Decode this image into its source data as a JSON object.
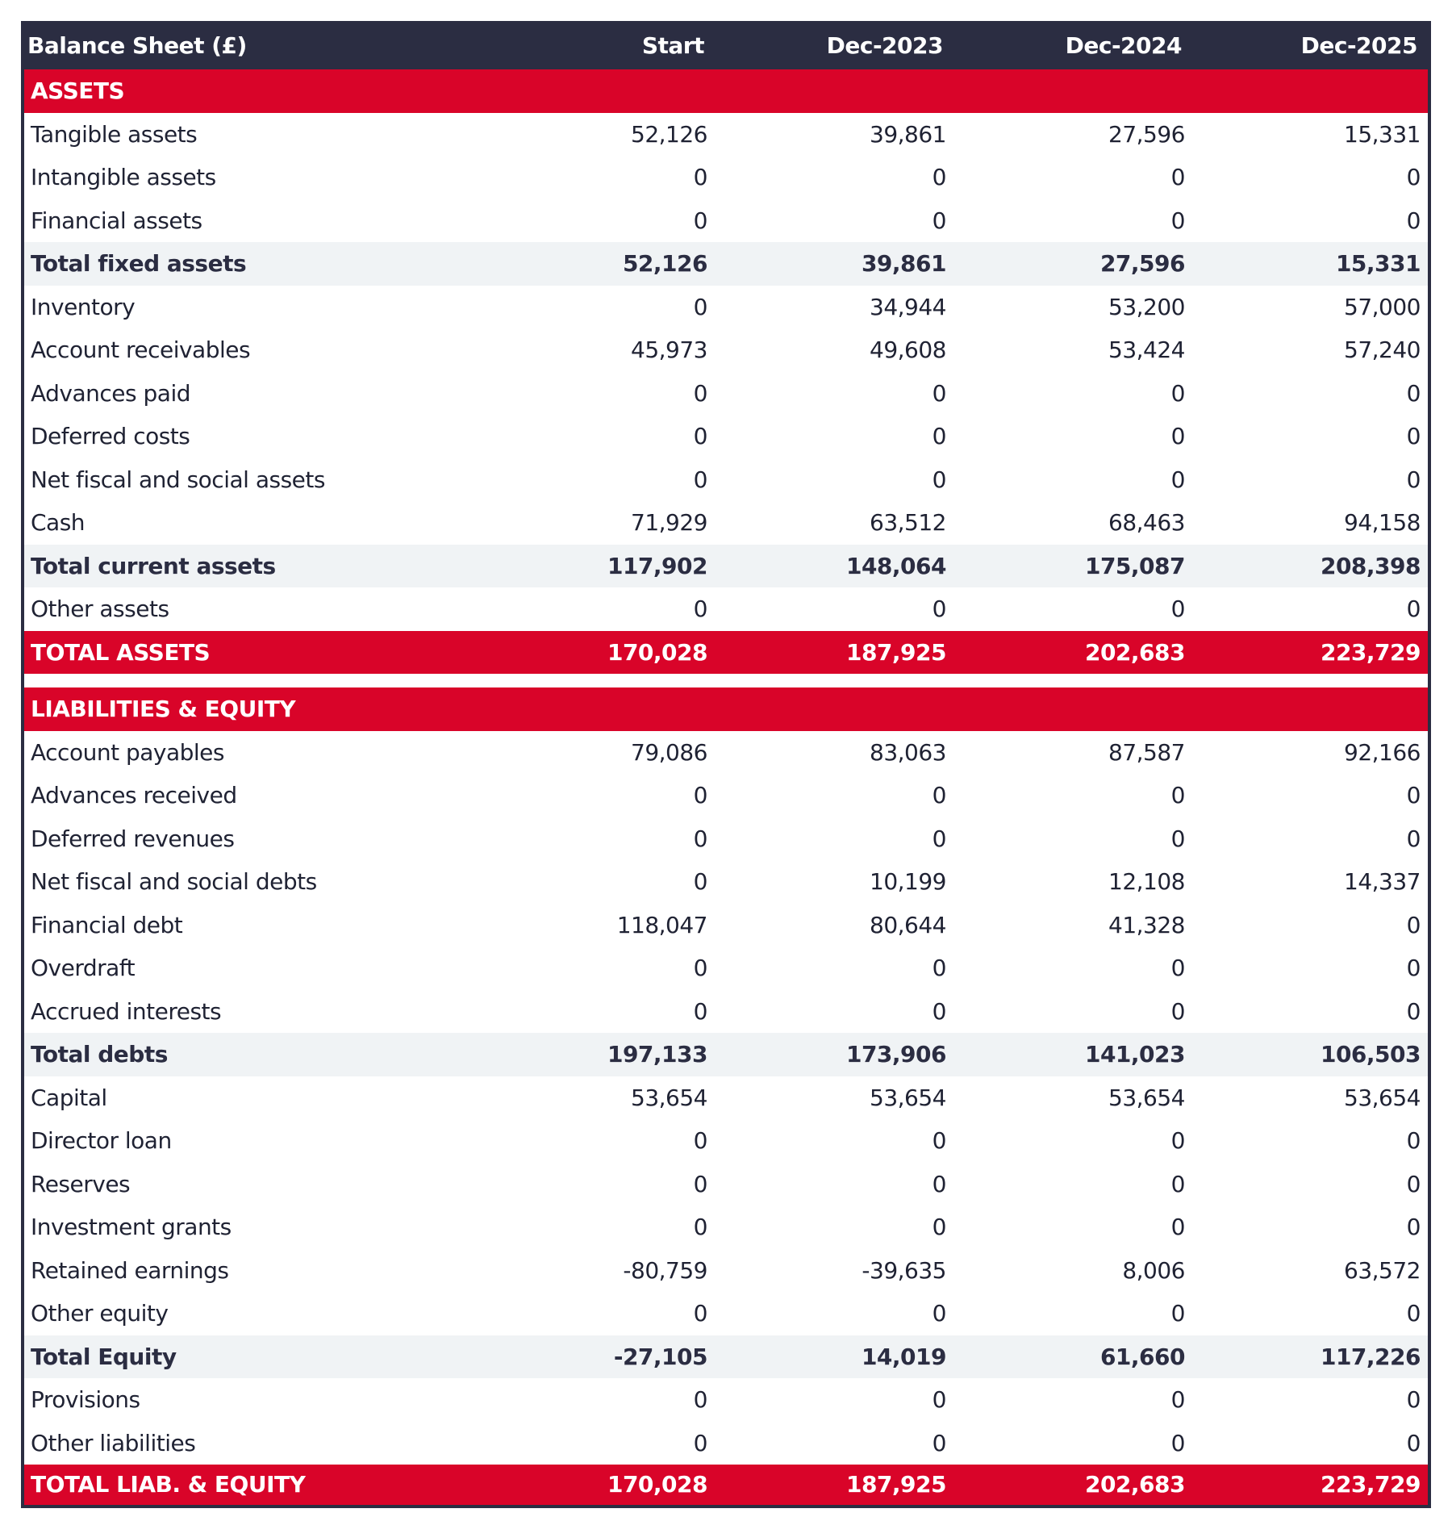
{
  "header": {
    "title": "Balance Sheet (£)",
    "columns": [
      "Start",
      "Dec-2023",
      "Dec-2024",
      "Dec-2025"
    ]
  },
  "colors": {
    "header": "#2b2d42",
    "accent": "#d90429",
    "total_bg": "#f0f3f5"
  },
  "assets": {
    "title": "ASSETS",
    "rows": [
      {
        "label": "Tangible assets",
        "values": [
          "52,126",
          "39,861",
          "27,596",
          "15,331"
        ],
        "type": "item"
      },
      {
        "label": "Intangible assets",
        "values": [
          "0",
          "0",
          "0",
          "0"
        ],
        "type": "item"
      },
      {
        "label": "Financial assets",
        "values": [
          "0",
          "0",
          "0",
          "0"
        ],
        "type": "item"
      },
      {
        "label": "Total fixed assets",
        "values": [
          "52,126",
          "39,861",
          "27,596",
          "15,331"
        ],
        "type": "total"
      },
      {
        "label": "Inventory",
        "values": [
          "0",
          "34,944",
          "53,200",
          "57,000"
        ],
        "type": "item"
      },
      {
        "label": "Account receivables",
        "values": [
          "45,973",
          "49,608",
          "53,424",
          "57,240"
        ],
        "type": "item"
      },
      {
        "label": "Advances paid",
        "values": [
          "0",
          "0",
          "0",
          "0"
        ],
        "type": "item"
      },
      {
        "label": "Deferred costs",
        "values": [
          "0",
          "0",
          "0",
          "0"
        ],
        "type": "item"
      },
      {
        "label": "Net fiscal and social assets",
        "values": [
          "0",
          "0",
          "0",
          "0"
        ],
        "type": "item"
      },
      {
        "label": "Cash",
        "values": [
          "71,929",
          "63,512",
          "68,463",
          "94,158"
        ],
        "type": "item"
      },
      {
        "label": "Total current assets",
        "values": [
          "117,902",
          "148,064",
          "175,087",
          "208,398"
        ],
        "type": "total"
      },
      {
        "label": "Other assets",
        "values": [
          "0",
          "0",
          "0",
          "0"
        ],
        "type": "item"
      },
      {
        "label": "TOTAL ASSETS",
        "values": [
          "170,028",
          "187,925",
          "202,683",
          "223,729"
        ],
        "type": "grand"
      }
    ]
  },
  "liabilities": {
    "title": "LIABILITIES & EQUITY",
    "rows": [
      {
        "label": "Account payables",
        "values": [
          "79,086",
          "83,063",
          "87,587",
          "92,166"
        ],
        "type": "item"
      },
      {
        "label": "Advances received",
        "values": [
          "0",
          "0",
          "0",
          "0"
        ],
        "type": "item"
      },
      {
        "label": "Deferred revenues",
        "values": [
          "0",
          "0",
          "0",
          "0"
        ],
        "type": "item"
      },
      {
        "label": "Net fiscal and social debts",
        "values": [
          "0",
          "10,199",
          "12,108",
          "14,337"
        ],
        "type": "item"
      },
      {
        "label": "Financial debt",
        "values": [
          "118,047",
          "80,644",
          "41,328",
          "0"
        ],
        "type": "item"
      },
      {
        "label": "Overdraft",
        "values": [
          "0",
          "0",
          "0",
          "0"
        ],
        "type": "item"
      },
      {
        "label": "Accrued interests",
        "values": [
          "0",
          "0",
          "0",
          "0"
        ],
        "type": "item"
      },
      {
        "label": "Total debts",
        "values": [
          "197,133",
          "173,906",
          "141,023",
          "106,503"
        ],
        "type": "total"
      },
      {
        "label": "Capital",
        "values": [
          "53,654",
          "53,654",
          "53,654",
          "53,654"
        ],
        "type": "item"
      },
      {
        "label": "Director loan",
        "values": [
          "0",
          "0",
          "0",
          "0"
        ],
        "type": "item"
      },
      {
        "label": "Reserves",
        "values": [
          "0",
          "0",
          "0",
          "0"
        ],
        "type": "item"
      },
      {
        "label": "Investment grants",
        "values": [
          "0",
          "0",
          "0",
          "0"
        ],
        "type": "item"
      },
      {
        "label": "Retained earnings",
        "values": [
          "-80,759",
          "-39,635",
          "8,006",
          "63,572"
        ],
        "type": "item"
      },
      {
        "label": "Other equity",
        "values": [
          "0",
          "0",
          "0",
          "0"
        ],
        "type": "item"
      },
      {
        "label": "Total Equity",
        "values": [
          "-27,105",
          "14,019",
          "61,660",
          "117,226"
        ],
        "type": "total"
      },
      {
        "label": "Provisions",
        "values": [
          "0",
          "0",
          "0",
          "0"
        ],
        "type": "item"
      },
      {
        "label": "Other liabilities",
        "values": [
          "0",
          "0",
          "0",
          "0"
        ],
        "type": "item"
      },
      {
        "label": "TOTAL LIAB. & EQUITY",
        "values": [
          "170,028",
          "187,925",
          "202,683",
          "223,729"
        ],
        "type": "grand"
      }
    ]
  }
}
